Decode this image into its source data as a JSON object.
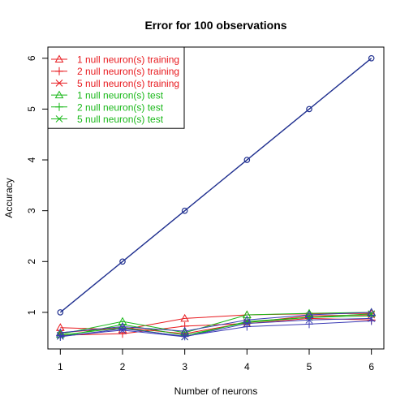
{
  "chart_data": {
    "type": "line",
    "title": "Error for 100 observations",
    "xlabel": "Number of neurons",
    "ylabel": "Accuracy",
    "x": [
      1,
      2,
      3,
      4,
      5,
      6
    ],
    "xlim": [
      0.8,
      6.2
    ],
    "ylim": [
      0.28,
      6.22
    ],
    "xticks": [
      "1",
      "2",
      "3",
      "4",
      "5",
      "6"
    ],
    "yticks": [
      "1",
      "2",
      "3",
      "4",
      "5",
      "6"
    ],
    "legend_position": "top-left",
    "series": [
      {
        "name": "",
        "color": "#1f2f8f",
        "marker": "circle",
        "values": [
          1,
          2,
          3,
          4,
          5,
          6
        ],
        "in_legend": false
      },
      {
        "name": "1 null neuron(s) training",
        "color": "#e8191e",
        "marker": "triangle",
        "values": [
          0.7,
          0.66,
          0.88,
          0.95,
          0.97,
          0.98
        ],
        "in_legend": true
      },
      {
        "name": "2 null neuron(s) training",
        "color": "#e8191e",
        "marker": "plus",
        "values": [
          0.55,
          0.58,
          0.73,
          0.78,
          0.88,
          0.85
        ],
        "in_legend": true
      },
      {
        "name": "5 null neuron(s) training",
        "color": "#e8191e",
        "marker": "x",
        "values": [
          0.6,
          0.7,
          0.58,
          0.8,
          0.93,
          0.95
        ],
        "in_legend": true
      },
      {
        "name": "1 null neuron(s) test",
        "color": "#19b819",
        "marker": "triangle",
        "values": [
          0.57,
          0.82,
          0.6,
          0.95,
          0.98,
          1.0
        ],
        "in_legend": true
      },
      {
        "name": "2 null neuron(s) test",
        "color": "#19b819",
        "marker": "plus",
        "values": [
          0.52,
          0.76,
          0.55,
          0.8,
          0.9,
          0.93
        ],
        "in_legend": true
      },
      {
        "name": "5 null neuron(s) test",
        "color": "#19b819",
        "marker": "x",
        "values": [
          0.55,
          0.7,
          0.52,
          0.82,
          0.9,
          0.97
        ],
        "in_legend": true
      },
      {
        "name": "",
        "color": "#3b3bb5",
        "marker": "triangle",
        "values": [
          0.6,
          0.72,
          0.63,
          0.85,
          0.95,
          1.0
        ],
        "in_legend": false
      },
      {
        "name": "",
        "color": "#3b3bb5",
        "marker": "plus",
        "values": [
          0.52,
          0.68,
          0.53,
          0.72,
          0.77,
          0.83
        ],
        "in_legend": false
      },
      {
        "name": "",
        "color": "#3b3bb5",
        "marker": "x",
        "values": [
          0.53,
          0.65,
          0.52,
          0.78,
          0.85,
          0.88
        ],
        "in_legend": false
      }
    ]
  }
}
